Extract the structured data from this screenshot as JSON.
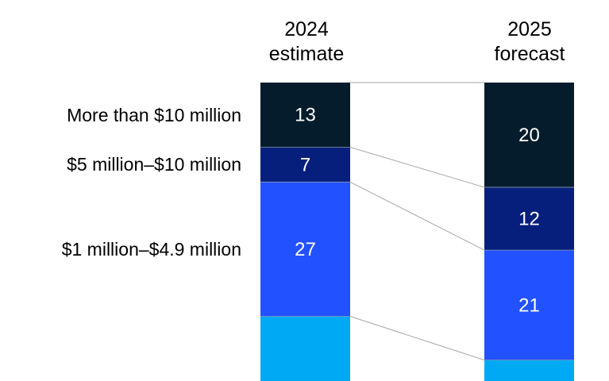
{
  "chart_data": {
    "type": "bar",
    "stacked": true,
    "normalized": true,
    "categories": [
      "2024 estimate",
      "2025 forecast"
    ],
    "category_lines": [
      [
        "2024",
        "estimate"
      ],
      [
        "2025",
        "forecast"
      ]
    ],
    "series": [
      {
        "label": "More than $10 million",
        "values": [
          13,
          20
        ],
        "color": "#051c2c",
        "text_color": "#ffffff"
      },
      {
        "label": "$5 million–$10 million",
        "values": [
          7,
          12
        ],
        "color": "#071f7c",
        "text_color": "#ffffff"
      },
      {
        "label": "$1 million–$4.9 million",
        "values": [
          27,
          21
        ],
        "color": "#2251ff",
        "text_color": "#ffffff"
      },
      {
        "label": "",
        "values": [
          13,
          4
        ],
        "color": "#00a9f4",
        "text_color": "#ffffff"
      }
    ],
    "data_labels_shown": [
      [
        true,
        true
      ],
      [
        true,
        true
      ],
      [
        true,
        true
      ],
      [
        false,
        false
      ]
    ],
    "connector_lines": true,
    "connector_color": "#a6a6a6",
    "legend": "left",
    "grid": false,
    "title": "",
    "xlabel": "",
    "ylabel": ""
  }
}
